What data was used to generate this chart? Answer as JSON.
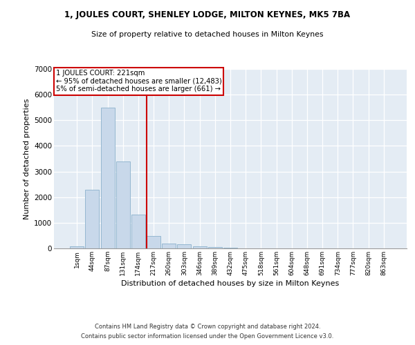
{
  "title1": "1, JOULES COURT, SHENLEY LODGE, MILTON KEYNES, MK5 7BA",
  "title2": "Size of property relative to detached houses in Milton Keynes",
  "xlabel": "Distribution of detached houses by size in Milton Keynes",
  "ylabel": "Number of detached properties",
  "footer1": "Contains HM Land Registry data © Crown copyright and database right 2024.",
  "footer2": "Contains public sector information licensed under the Open Government Licence v3.0.",
  "annotation_line1": "1 JOULES COURT: 221sqm",
  "annotation_line2": "← 95% of detached houses are smaller (12,483)",
  "annotation_line3": "5% of semi-detached houses are larger (661) →",
  "bar_color": "#c8d8ea",
  "bar_edge_color": "#8ab0cc",
  "vline_color": "#cc0000",
  "annotation_box_edge_color": "#cc0000",
  "bg_color": "#e4ecf4",
  "categories": [
    "1sqm",
    "44sqm",
    "87sqm",
    "131sqm",
    "174sqm",
    "217sqm",
    "260sqm",
    "303sqm",
    "346sqm",
    "389sqm",
    "432sqm",
    "475sqm",
    "518sqm",
    "561sqm",
    "604sqm",
    "648sqm",
    "691sqm",
    "734sqm",
    "777sqm",
    "820sqm",
    "863sqm"
  ],
  "values": [
    70,
    2300,
    5480,
    3400,
    1310,
    490,
    200,
    175,
    90,
    60,
    40,
    0,
    0,
    0,
    0,
    0,
    0,
    0,
    0,
    0,
    0
  ],
  "ylim": [
    0,
    7000
  ],
  "yticks": [
    0,
    1000,
    2000,
    3000,
    4000,
    5000,
    6000,
    7000
  ],
  "vline_x_index": 5,
  "figsize": [
    6.0,
    5.0
  ],
  "dpi": 100
}
